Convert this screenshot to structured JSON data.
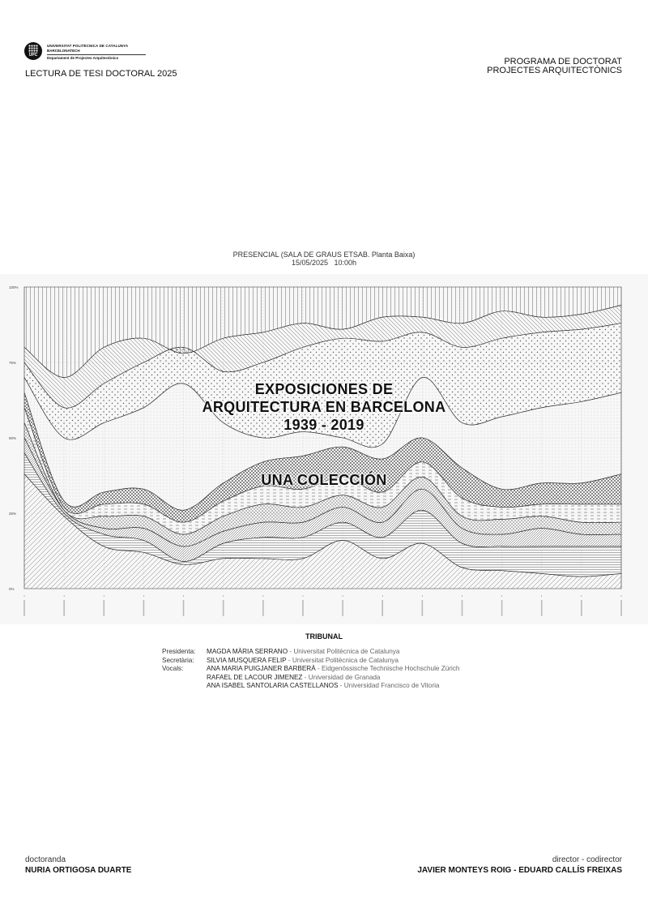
{
  "header": {
    "logo": {
      "university": "UNIVERSITAT POLITÈCNICA DE CATALUNYA",
      "subline": "BARCELONATECH",
      "department": "Departament de Projectes Arquitectònics",
      "mark": "UPC"
    },
    "event": "LECTURA DE TESI DOCTORAL 2025",
    "program_line1": "PROGRAMA DE DOCTORAT",
    "program_line2": "PROJECTES ARQUITECTÒNICS"
  },
  "session": {
    "location": "PRESENCIAL (SALA DE GRAUS ETSAB. Planta Baixa)",
    "datetime": "15/05/2025   10:00h"
  },
  "thesis": {
    "title_line1": "EXPOSICIONES DE",
    "title_line2": "ARQUITECTURA EN BARCELONA",
    "title_line3": "1939 - 2019",
    "subtitle": "UNA COLECCIÓN"
  },
  "chart_data": {
    "type": "area",
    "stacked": true,
    "normalized": true,
    "y_tick_labels": [
      "0%",
      "25%",
      "50%",
      "75%",
      "100%"
    ],
    "ylim": [
      0,
      100
    ],
    "x_count": 16,
    "grid": true,
    "colors": {
      "line": "#333333",
      "background": "#f7f7f7"
    },
    "series": [
      {
        "pattern": "diagonal-hatch",
        "values": [
          38,
          24,
          14,
          12,
          8,
          10,
          10,
          10,
          16,
          10,
          15,
          7,
          6,
          5,
          4,
          5
        ]
      },
      {
        "pattern": "horizontal-lines",
        "values": [
          7,
          1,
          4,
          4,
          1,
          5,
          7,
          7,
          6,
          7,
          11,
          8,
          8,
          9,
          10,
          9
        ]
      },
      {
        "pattern": "dense-diagonal",
        "values": [
          5,
          1,
          2,
          4,
          5,
          4,
          5,
          5,
          5,
          5,
          7,
          5,
          4,
          6,
          4,
          4
        ]
      },
      {
        "pattern": "cross-hatch",
        "values": [
          5,
          0,
          4,
          4,
          4,
          5,
          6,
          5,
          4,
          5,
          4,
          4,
          5,
          4,
          4,
          4
        ]
      },
      {
        "pattern": "dashes",
        "values": [
          5,
          1,
          4,
          4,
          4,
          5,
          6,
          6,
          6,
          5,
          5,
          6,
          4,
          4,
          6,
          6
        ]
      },
      {
        "pattern": "checker",
        "values": [
          5,
          2,
          4,
          5,
          4,
          6,
          8,
          11,
          10,
          11,
          8,
          10,
          6,
          7,
          7,
          10
        ]
      },
      {
        "pattern": "fine-dots",
        "values": [
          5,
          21,
          23,
          27,
          42,
          20,
          8,
          8,
          3,
          5,
          20,
          15,
          24,
          25,
          27,
          27
        ]
      },
      {
        "pattern": "dots",
        "values": [
          5,
          10,
          13,
          15,
          12,
          17,
          25,
          28,
          33,
          34,
          15,
          25,
          26,
          25,
          24,
          23
        ]
      },
      {
        "pattern": "back-slash",
        "values": [
          5,
          10,
          12,
          8,
          -2,
          11,
          10,
          8,
          3,
          8,
          5,
          8,
          9,
          5,
          5,
          6
        ]
      },
      {
        "pattern": "vertical-lines",
        "values": [
          20,
          30,
          20,
          17,
          22,
          17,
          15,
          12,
          14,
          10,
          10,
          12,
          8,
          10,
          9,
          6
        ]
      }
    ]
  },
  "tribunal": {
    "heading": "TRIBUNAL",
    "members": [
      {
        "role": "Presidenta:",
        "name": "MAGDA MÀRIA SERRANO",
        "institution": " - Universitat Politècnica de Catalunya"
      },
      {
        "role": "Secretària:",
        "name": "SILVIA MUSQUERA FELIP",
        "institution": " - Universitat Politècnica de Catalunya"
      },
      {
        "role": "Vocals:",
        "name": "ANA MARIA PUIGJANER BARBERÀ",
        "institution": " - Eidgenössische Technische Hochschule Zürich"
      },
      {
        "role": "",
        "name": "RAFAEL DE LACOUR JIMENEZ",
        "institution": " - Universidad de Granada"
      },
      {
        "role": "",
        "name": "ANA ISABEL SANTOLARIA CASTELLANOS",
        "institution": " - Universidad Francisco de Vitoria"
      }
    ]
  },
  "footer": {
    "candidate_label": "doctoranda",
    "candidate_name": "NURIA ORTIGOSA DUARTE",
    "directors_label": "director - codirector",
    "directors_names": "JAVIER MONTEYS ROIG - EDUARD CALLÍS FREIXAS"
  }
}
